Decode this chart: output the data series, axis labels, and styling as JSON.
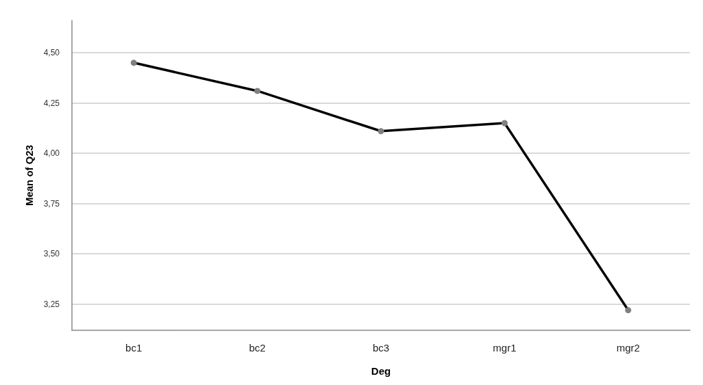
{
  "chart_data": {
    "type": "line",
    "xlabel": "Deg",
    "ylabel": "Mean of Q23",
    "categories": [
      "bc1",
      "bc2",
      "bc3",
      "mgr1",
      "mgr2"
    ],
    "series": [
      {
        "color": "#000000",
        "values": [
          4.45,
          4.31,
          4.11,
          4.15,
          3.22
        ]
      }
    ],
    "ylim": [
      3.12,
      4.66
    ],
    "yticks": [
      {
        "value": 3.25,
        "label": "3,25"
      },
      {
        "value": 3.5,
        "label": "3,50"
      },
      {
        "value": 3.75,
        "label": "3,75"
      },
      {
        "value": 4,
        "label": "4,00"
      },
      {
        "value": 4.25,
        "label": "4,25"
      },
      {
        "value": 4.5,
        "label": "4,50"
      }
    ],
    "grid": "y",
    "marker": "circle",
    "line_style": "solid"
  }
}
